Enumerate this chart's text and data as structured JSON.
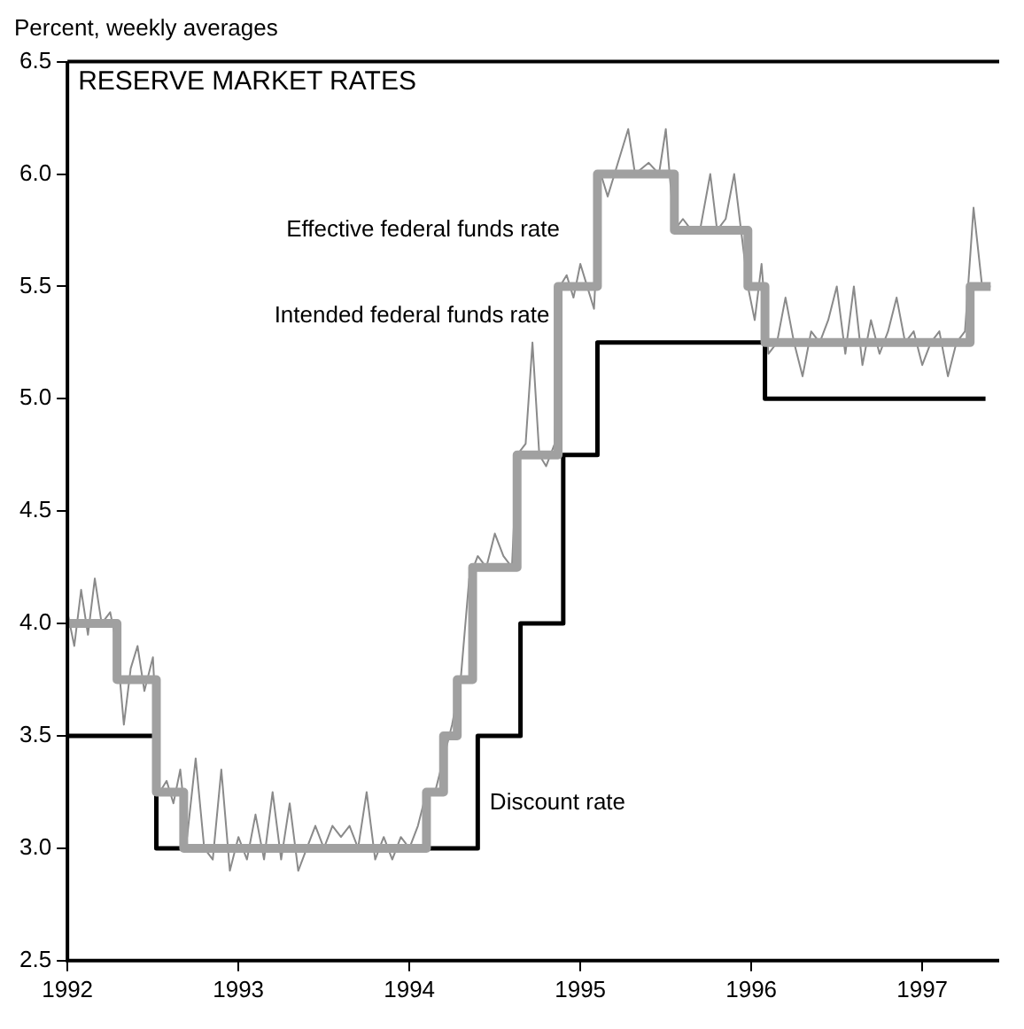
{
  "chart_data": {
    "type": "line",
    "title": "RESERVE MARKET RATES",
    "ylabel": "Percent, weekly averages",
    "xlim": [
      1992,
      1997.45
    ],
    "xticks": [
      1992,
      1993,
      1994,
      1995,
      1996,
      1997
    ],
    "ylim": [
      2.5,
      6.5
    ],
    "yticks": [
      {
        "value": 2.5,
        "label": "2.5"
      },
      {
        "value": 3,
        "label": "3.0"
      },
      {
        "value": 3.5,
        "label": "3.5"
      },
      {
        "value": 4,
        "label": "4.0"
      },
      {
        "value": 4.5,
        "label": "4.5"
      },
      {
        "value": 5,
        "label": "5.0"
      },
      {
        "value": 5.5,
        "label": "5.5"
      },
      {
        "value": 6,
        "label": "6.0"
      },
      {
        "value": 6.5,
        "label": "6.5"
      }
    ],
    "grid": false,
    "legend": false,
    "marker": "none",
    "line_style": "solid",
    "series": [
      {
        "name": "Intended federal funds rate",
        "type": "step",
        "color": "#a0a0a0",
        "x": [
          1992,
          1992.29,
          1992.52,
          1992.68,
          1994.1,
          1994.2,
          1994.28,
          1994.37,
          1994.63,
          1994.87,
          1995.1,
          1995.55,
          1995.98,
          1996.08,
          1997.28,
          1997.4
        ],
        "values": [
          4,
          3.75,
          3.25,
          3,
          3.25,
          3.5,
          3.75,
          4.25,
          4.75,
          5.5,
          6,
          5.75,
          5.5,
          5.25,
          5.5,
          5.5
        ]
      },
      {
        "name": "Effective federal funds rate",
        "type": "line",
        "color": "#8a8a8a",
        "x": [
          1992,
          1992.04,
          1992.08,
          1992.12,
          1992.16,
          1992.2,
          1992.25,
          1992.29,
          1992.33,
          1992.37,
          1992.41,
          1992.45,
          1992.5,
          1992.54,
          1992.58,
          1992.62,
          1992.66,
          1992.7,
          1992.75,
          1992.8,
          1992.85,
          1992.9,
          1992.95,
          1993,
          1993.05,
          1993.1,
          1993.15,
          1993.2,
          1993.25,
          1993.3,
          1993.35,
          1993.4,
          1993.45,
          1993.5,
          1993.55,
          1993.6,
          1993.65,
          1993.7,
          1993.75,
          1993.8,
          1993.85,
          1993.9,
          1993.95,
          1994,
          1994.05,
          1994.1,
          1994.15,
          1994.2,
          1994.25,
          1994.3,
          1994.35,
          1994.4,
          1994.45,
          1994.5,
          1994.55,
          1994.6,
          1994.63,
          1994.68,
          1994.72,
          1994.76,
          1994.8,
          1994.85,
          1994.88,
          1994.92,
          1994.96,
          1995,
          1995.04,
          1995.08,
          1995.12,
          1995.16,
          1995.2,
          1995.28,
          1995.32,
          1995.4,
          1995.46,
          1995.5,
          1995.55,
          1995.6,
          1995.65,
          1995.7,
          1995.76,
          1995.8,
          1995.85,
          1995.9,
          1995.94,
          1995.98,
          1996.02,
          1996.06,
          1996.1,
          1996.15,
          1996.2,
          1996.25,
          1996.3,
          1996.35,
          1996.4,
          1996.45,
          1996.5,
          1996.55,
          1996.6,
          1996.65,
          1996.7,
          1996.75,
          1996.8,
          1996.85,
          1996.9,
          1996.95,
          1997,
          1997.05,
          1997.1,
          1997.15,
          1997.2,
          1997.25,
          1997.3,
          1997.35,
          1997.4
        ],
        "values": [
          4.05,
          3.9,
          4.15,
          3.95,
          4.2,
          4,
          4.05,
          3.9,
          3.55,
          3.8,
          3.9,
          3.7,
          3.85,
          3.25,
          3.3,
          3.2,
          3.35,
          3.05,
          3.4,
          3,
          2.95,
          3.35,
          2.9,
          3.05,
          2.95,
          3.15,
          2.95,
          3.25,
          2.95,
          3.2,
          2.9,
          3,
          3.1,
          3,
          3.1,
          3.05,
          3.1,
          3,
          3.25,
          2.95,
          3.05,
          2.95,
          3.05,
          3,
          3.1,
          3.25,
          3.25,
          3.4,
          3.55,
          3.75,
          4.2,
          4.3,
          4.25,
          4.4,
          4.3,
          4.25,
          4.75,
          4.8,
          5.25,
          4.75,
          4.7,
          4.8,
          5.5,
          5.55,
          5.45,
          5.6,
          5.5,
          5.4,
          6,
          5.9,
          6,
          6.2,
          6,
          6.05,
          6,
          6.2,
          5.75,
          5.8,
          5.75,
          5.75,
          6,
          5.75,
          5.8,
          6,
          5.75,
          5.5,
          5.35,
          5.6,
          5.2,
          5.25,
          5.45,
          5.25,
          5.1,
          5.3,
          5.25,
          5.35,
          5.5,
          5.2,
          5.5,
          5.15,
          5.35,
          5.2,
          5.3,
          5.45,
          5.25,
          5.3,
          5.15,
          5.25,
          5.3,
          5.1,
          5.25,
          5.3,
          5.85,
          5.5,
          5.5
        ]
      },
      {
        "name": "Discount rate",
        "type": "step",
        "color": "#000000",
        "x": [
          1992,
          1992.52,
          1994.4,
          1994.65,
          1994.9,
          1995.1,
          1996.08,
          1997.37
        ],
        "values": [
          3.5,
          3,
          3.5,
          4,
          4.75,
          5.25,
          5,
          5
        ]
      }
    ]
  }
}
